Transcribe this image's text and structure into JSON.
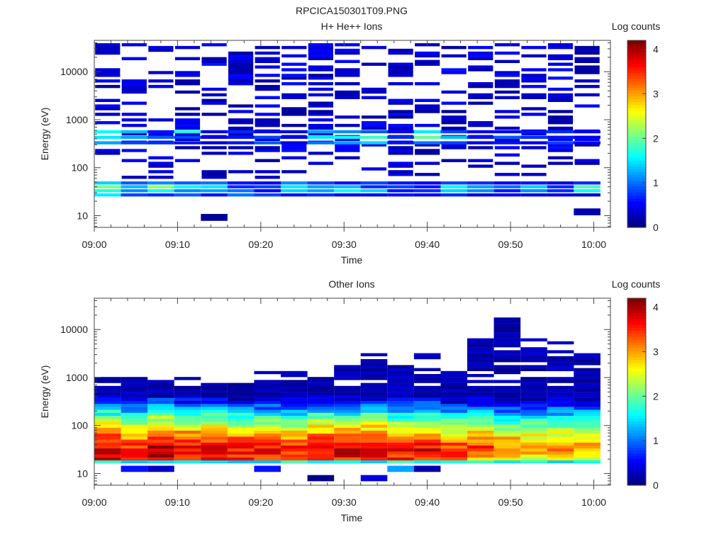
{
  "figure_title": "RPCICA150301T09.PNG",
  "chart_data": [
    {
      "type": "heatmap",
      "title": "H+ He++ Ions",
      "xlabel": "Time",
      "ylabel": "Energy (eV)",
      "x_ticks": [
        "09:00",
        "09:10",
        "09:20",
        "09:30",
        "09:40",
        "09:50",
        "10:00"
      ],
      "y_ticks": [
        "10",
        "100",
        "1000",
        "10000"
      ],
      "x_range_minutes": [
        0,
        62
      ],
      "y_range_eV": [
        5.7,
        45000
      ],
      "y_scale": "log",
      "colorbar": {
        "label": "Log counts",
        "ticks": [
          "0",
          "1",
          "2",
          "3",
          "4"
        ],
        "range": [
          0,
          4.2
        ]
      },
      "time_bins_minutes": [
        0,
        3.2,
        6.4,
        9.6,
        12.8,
        16.0,
        19.2,
        22.4,
        25.6,
        28.8,
        32.0,
        35.2,
        38.4,
        41.6,
        44.8,
        48.0,
        51.2,
        54.4,
        57.6,
        60.8
      ],
      "profiles": [
        {
          "energy_eV": 27,
          "log_counts": [
            1.5,
            0.8,
            0.7,
            0.9,
            0.6,
            1.0,
            0.8,
            0.6,
            0.7,
            0.5,
            0.5,
            0.6,
            0.5,
            0.7,
            0.4,
            0.5,
            0.4,
            0.4,
            0.3
          ]
        },
        {
          "energy_eV": 33,
          "log_counts": [
            1.7,
            1.1,
            1.6,
            1.1,
            1.2,
            1.0,
            0.5,
            1.4,
            1.2,
            1.6,
            1.4,
            0.6,
            0.7,
            1.4,
            1.1,
            0.6,
            1.1,
            0.7,
            1.6
          ]
        },
        {
          "energy_eV": 40,
          "log_counts": [
            2.1,
            1.3,
            2.2,
            1.6,
            1.5,
            0.7,
            0.8,
            1.5,
            1.2,
            1.3,
            0.7,
            0.8,
            0.6,
            1.6,
            1.2,
            1.0,
            1.4,
            0.7,
            1.9
          ]
        },
        {
          "energy_eV": 48,
          "log_counts": [
            1.4,
            0.9,
            1.1,
            0.9,
            1.0,
            0.6,
            0.5,
            1.1,
            0.8,
            0.6,
            0.8,
            0.6,
            0.5,
            0.8,
            0.7,
            0.5,
            0.6,
            0.4,
            0.7
          ]
        },
        {
          "energy_eV": 330,
          "log_counts": [
            1.2,
            0.8,
            0.7,
            0.6,
            0.4,
            0.6,
            0.9,
            0.4,
            1.0,
            1.2,
            1.4,
            0.6,
            1.0,
            0.8,
            0.5,
            0.6,
            0.5,
            0.8,
            0.5
          ]
        },
        {
          "energy_eV": 430,
          "log_counts": [
            1.5,
            1.2,
            0.9,
            0.8,
            0.5,
            0.6,
            0.8,
            0.5,
            1.5,
            1.6,
            1.8,
            0.7,
            2.0,
            1.3,
            0.6,
            0.9,
            0.7,
            0.6,
            0.5
          ]
        },
        {
          "energy_eV": 560,
          "log_counts": [
            1.6,
            1.3,
            0.6,
            1.7,
            0.4,
            0.7,
            0.5,
            0.4,
            1.2,
            1.1,
            0.9,
            0.5,
            1.5,
            0.8,
            0.5,
            0.5,
            0.6,
            0.7,
            0.5
          ]
        }
      ],
      "sparse_band_log_counts": 0.1,
      "isolated_pixels": [
        {
          "time_minutes": 14.4,
          "energy_eV": 9.2,
          "log_counts": 0.1
        },
        {
          "time_minutes": 57.6,
          "energy_eV": 12,
          "log_counts": 0.2
        }
      ]
    },
    {
      "type": "heatmap",
      "title": "Other Ions",
      "xlabel": "Time",
      "ylabel": "Energy (eV)",
      "x_ticks": [
        "09:00",
        "09:10",
        "09:20",
        "09:30",
        "09:40",
        "09:50",
        "10:00"
      ],
      "y_ticks": [
        "10",
        "100",
        "1000",
        "10000"
      ],
      "x_range_minutes": [
        0,
        62
      ],
      "y_range_eV": [
        5.7,
        45000
      ],
      "y_scale": "log",
      "colorbar": {
        "label": "Log counts",
        "ticks": [
          "0",
          "1",
          "2",
          "3",
          "4"
        ],
        "range": [
          0,
          4.2
        ]
      },
      "time_bins_minutes": [
        0,
        3.2,
        6.4,
        9.6,
        12.8,
        16.0,
        19.2,
        22.4,
        25.6,
        28.8,
        32.0,
        35.2,
        38.4,
        41.6,
        44.8,
        48.0,
        51.2,
        54.4,
        57.6,
        60.8
      ],
      "profile_energy_eV": [
        19,
        22,
        26,
        30,
        35,
        41,
        48,
        56,
        66,
        77,
        90,
        105,
        123,
        144,
        168,
        197,
        230,
        270,
        315,
        370,
        430,
        505,
        590,
        690,
        810
      ],
      "peak_log_counts": [
        3.9,
        3.6,
        4.0,
        3.8,
        3.9,
        3.7,
        3.6,
        3.6,
        3.8,
        3.8,
        3.9,
        3.7,
        3.8,
        3.5,
        3.4,
        3.2,
        3.0,
        3.1,
        3.0
      ],
      "peak_energy_eV": [
        32,
        32,
        32,
        32,
        32,
        32,
        32,
        32,
        32,
        32,
        32,
        32,
        32,
        32,
        36,
        36,
        38,
        40,
        42
      ],
      "high_energy_cutoff_eV": [
        1150,
        1000,
        1250,
        1250,
        900,
        900,
        1300,
        1400,
        1150,
        1800,
        3200,
        2300,
        3200,
        1300,
        7000,
        17000,
        7000,
        6000,
        3000
      ],
      "low_energy_pixels": [
        {
          "time_minutes": 3.2,
          "energy_eV": 12.5,
          "log_counts": 0.6
        },
        {
          "time_minutes": 6.4,
          "energy_eV": 12.5,
          "log_counts": 0.3
        },
        {
          "time_minutes": 19.2,
          "energy_eV": 12.5,
          "log_counts": 0.6
        },
        {
          "time_minutes": 25.6,
          "energy_eV": 8.0,
          "log_counts": 0.05
        },
        {
          "time_minutes": 32.0,
          "energy_eV": 8.0,
          "log_counts": 0.4
        },
        {
          "time_minutes": 35.2,
          "energy_eV": 12.5,
          "log_counts": 1.2
        },
        {
          "time_minutes": 38.4,
          "energy_eV": 12.5,
          "log_counts": 0.2
        }
      ]
    }
  ]
}
